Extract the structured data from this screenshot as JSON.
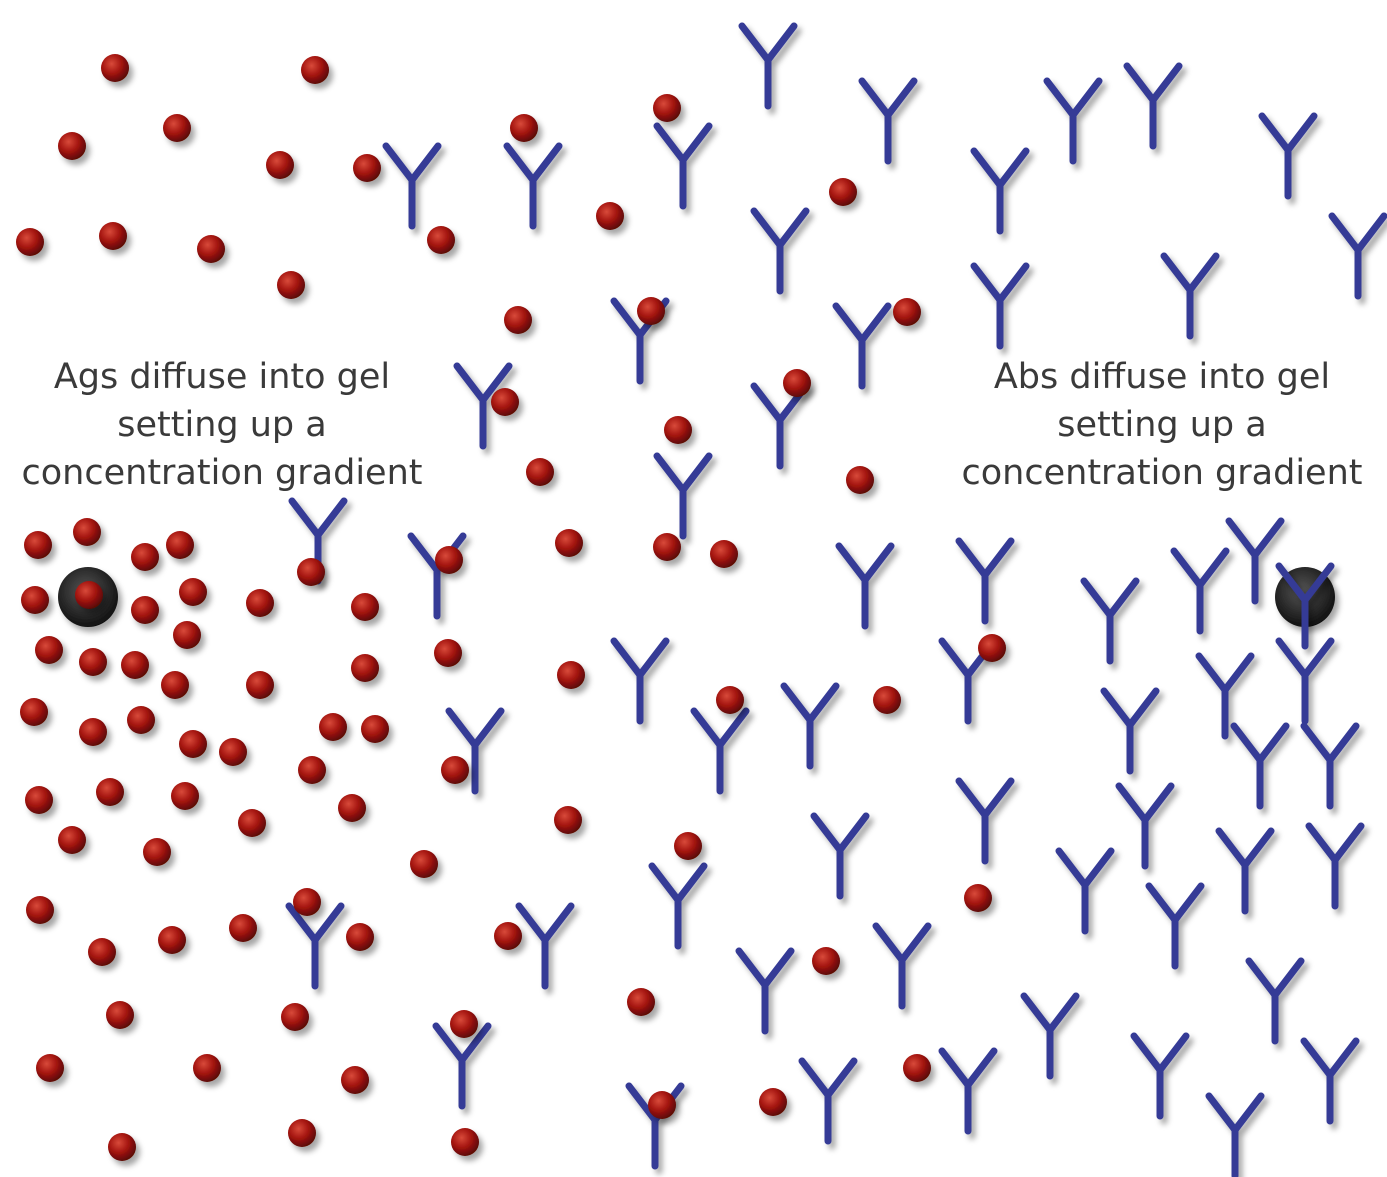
{
  "left_label": {
    "lines": [
      "Ags diffuse into gel",
      "setting up a",
      "concentration gradient"
    ]
  },
  "right_label": {
    "lines": [
      "Abs diffuse into gel",
      "setting up a",
      "concentration gradient"
    ]
  }
}
